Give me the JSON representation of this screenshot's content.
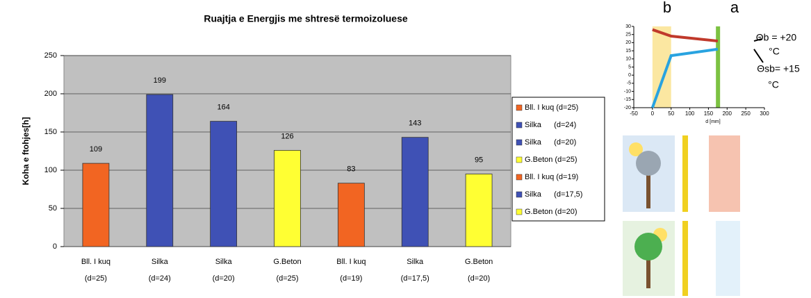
{
  "chart_data": [
    {
      "type": "bar",
      "title": "Ruajtja e Energjis me shtresë termoizoluese",
      "y_label": "Koha e ftohjes[h]",
      "categories": [
        [
          "Bll. I kuq",
          "(d=25)"
        ],
        [
          "Silka",
          "(d=24)"
        ],
        [
          "Silka",
          "(d=20)"
        ],
        [
          "G.Beton",
          "(d=25)"
        ],
        [
          "Bll. I kuq",
          "(d=19)"
        ],
        [
          "Silka",
          "(d=17,5)"
        ],
        [
          "G.Beton",
          "(d=20)"
        ]
      ],
      "values": [
        109,
        199,
        164,
        126,
        83,
        143,
        95
      ],
      "colors": [
        "#f26522",
        "#3f51b5",
        "#3f51b5",
        "#ffff33",
        "#f26522",
        "#3f51b5",
        "#ffff33"
      ],
      "legend": [
        "Bll. I kuq (d=25)",
        "Silka      (d=24)",
        "Silka      (d=20)",
        "G.Beton (d=25)",
        "Bll. I kuq (d=19)",
        "Silka      (d=17,5)",
        "G.Beton (d=20)"
      ],
      "ylim": [
        0,
        250
      ],
      "yticks": [
        0,
        50,
        100,
        150,
        200,
        250
      ],
      "grid": true
    },
    {
      "type": "line",
      "x_label": "d [mm]",
      "series": [
        {
          "color": "#c0392b",
          "x": [
            0,
            50,
            175
          ],
          "values": [
            28,
            24,
            21
          ]
        },
        {
          "color": "#29a3e0",
          "x": [
            0,
            50,
            175
          ],
          "values": [
            -20,
            12,
            16
          ]
        }
      ],
      "xlim": [
        -50,
        300
      ],
      "xticks": [
        -50,
        0,
        50,
        100,
        150,
        200,
        250,
        300
      ],
      "ylim": [
        -20,
        30
      ],
      "yticks": [
        30,
        25,
        20,
        15,
        10,
        5,
        0,
        -5,
        -10,
        -15,
        -20
      ],
      "annotations": [
        "b",
        "a",
        "Θb = +20",
        "°C",
        "Θsb= +15",
        "°C"
      ]
    }
  ]
}
